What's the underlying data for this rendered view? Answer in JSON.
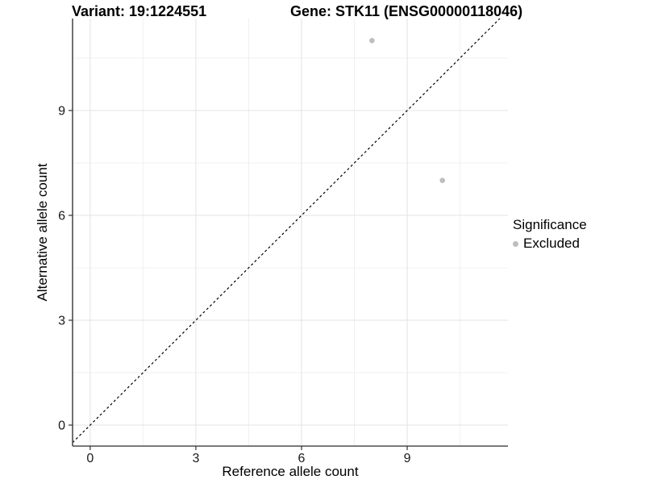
{
  "titles": {
    "left": "Variant: 19:1224551",
    "right": "Gene: STK11 (ENSG00000118046)"
  },
  "axes": {
    "x": {
      "label": "Reference allele count",
      "tick_labels": [
        "0",
        "3",
        "6",
        "9"
      ]
    },
    "y": {
      "label": "Alternative allele count",
      "tick_labels": [
        "0",
        "3",
        "6",
        "9"
      ]
    }
  },
  "legend": {
    "title": "Significance",
    "items": [
      {
        "label": "Excluded",
        "color": "#bebebe"
      }
    ]
  },
  "chart_data": {
    "type": "scatter",
    "title": "Variant: 19:1224551   Gene: STK11 (ENSG00000118046)",
    "xlabel": "Reference allele count",
    "ylabel": "Alternative allele count",
    "xlim": [
      -0.5,
      11.86
    ],
    "ylim": [
      -0.6,
      11.63
    ],
    "x_major_ticks": [
      0,
      3,
      6,
      9
    ],
    "y_major_ticks": [
      0,
      3,
      6,
      9
    ],
    "x_minor_ticks": [
      1.5,
      4.5,
      7.5,
      10.5
    ],
    "y_minor_ticks": [
      1.5,
      4.5,
      7.5,
      10.5
    ],
    "grid": true,
    "legend_position": "right",
    "series": [
      {
        "name": "Excluded",
        "color": "#bebebe",
        "points": [
          {
            "x": 8,
            "y": 11
          },
          {
            "x": 10,
            "y": 7
          }
        ]
      }
    ],
    "reference_line": {
      "type": "identity",
      "equation": "y = x",
      "style": "dashed",
      "color": "#000000"
    }
  },
  "colors": {
    "background": "#ffffff",
    "grid_major": "#e3e3e3",
    "grid_minor": "#f0f0f0",
    "axis_line": "#4d4d4d",
    "tick_mark": "#333333",
    "tick_label": "#1a1a1a",
    "point": "#bebebe"
  }
}
